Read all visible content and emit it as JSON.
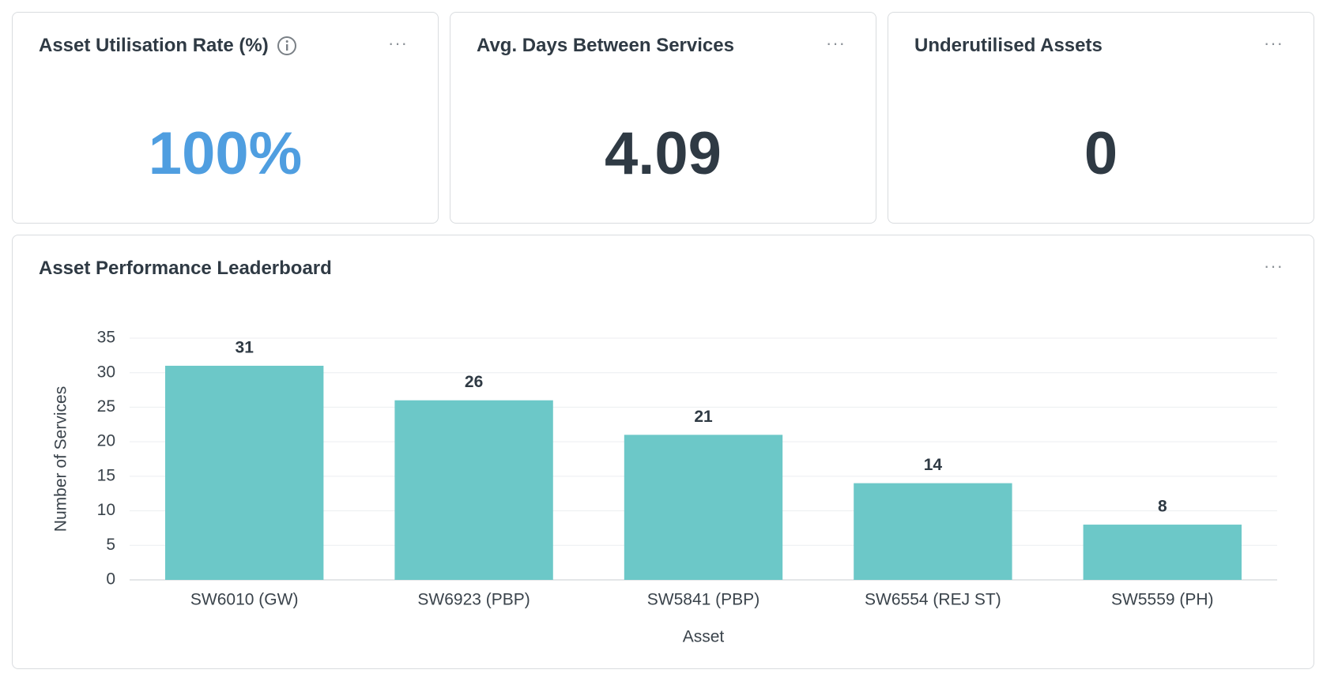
{
  "cards": [
    {
      "title": "Asset Utilisation Rate (%)",
      "value": "100%"
    },
    {
      "title": "Avg. Days Between Services",
      "value": "4.09"
    },
    {
      "title": "Underutilised Assets",
      "value": "0"
    }
  ],
  "chart_data": {
    "type": "bar",
    "title": "Asset Performance Leaderboard",
    "x_label": "Asset",
    "y_label": "Number of Services",
    "categories": [
      "SW6010 (GW)",
      "SW6923 (PBP)",
      "SW5841 (PBP)",
      "SW6554 (REJ ST)",
      "SW5559 (PH)"
    ],
    "values": [
      31,
      26,
      21,
      14,
      8
    ],
    "color": "#6cc8c8",
    "ylim": [
      0,
      35
    ],
    "yticks": [
      0,
      5,
      10,
      15,
      20,
      25,
      30,
      35
    ],
    "grid": true
  }
}
